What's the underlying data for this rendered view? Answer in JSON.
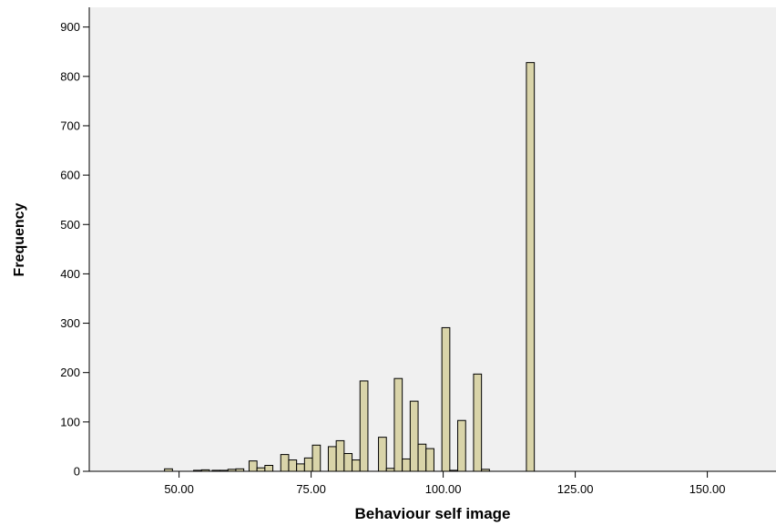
{
  "chart_data": {
    "type": "bar",
    "title": "",
    "xlabel": "Behaviour self image",
    "ylabel": "Frequency",
    "xlim": [
      33,
      163
    ],
    "ylim": [
      0,
      940
    ],
    "x_ticks": [
      "50.00",
      "75.00",
      "100.00",
      "125.00",
      "150.00"
    ],
    "x_tick_values": [
      50,
      75,
      100,
      125,
      150
    ],
    "y_ticks": [
      "0",
      "100",
      "200",
      "300",
      "400",
      "500",
      "600",
      "700",
      "800",
      "900"
    ],
    "y_tick_values": [
      0,
      100,
      200,
      300,
      400,
      500,
      600,
      700,
      800,
      900
    ],
    "bar_width": 1.5,
    "grid": false,
    "legend": "none",
    "colors": {
      "plot_bg": "#f0f0f0",
      "bar_fill": "#d9d4a9",
      "bar_stroke": "#000000"
    },
    "bars": [
      {
        "x": 48.0,
        "value": 5
      },
      {
        "x": 53.5,
        "value": 2
      },
      {
        "x": 55.0,
        "value": 3
      },
      {
        "x": 57.0,
        "value": 2
      },
      {
        "x": 58.5,
        "value": 2
      },
      {
        "x": 60.0,
        "value": 4
      },
      {
        "x": 61.5,
        "value": 5
      },
      {
        "x": 64.0,
        "value": 21
      },
      {
        "x": 65.5,
        "value": 7
      },
      {
        "x": 67.0,
        "value": 12
      },
      {
        "x": 70.0,
        "value": 34
      },
      {
        "x": 71.5,
        "value": 23
      },
      {
        "x": 73.0,
        "value": 15
      },
      {
        "x": 74.5,
        "value": 27
      },
      {
        "x": 76.0,
        "value": 53
      },
      {
        "x": 79.0,
        "value": 50
      },
      {
        "x": 80.5,
        "value": 62
      },
      {
        "x": 82.0,
        "value": 36
      },
      {
        "x": 83.5,
        "value": 23
      },
      {
        "x": 85.0,
        "value": 183
      },
      {
        "x": 88.5,
        "value": 69
      },
      {
        "x": 90.0,
        "value": 6
      },
      {
        "x": 91.5,
        "value": 188
      },
      {
        "x": 93.0,
        "value": 25
      },
      {
        "x": 94.5,
        "value": 142
      },
      {
        "x": 96.0,
        "value": 55
      },
      {
        "x": 97.5,
        "value": 46
      },
      {
        "x": 100.5,
        "value": 291
      },
      {
        "x": 102.0,
        "value": 2
      },
      {
        "x": 103.5,
        "value": 103
      },
      {
        "x": 106.5,
        "value": 197
      },
      {
        "x": 108.0,
        "value": 4
      },
      {
        "x": 116.5,
        "value": 828
      }
    ]
  }
}
